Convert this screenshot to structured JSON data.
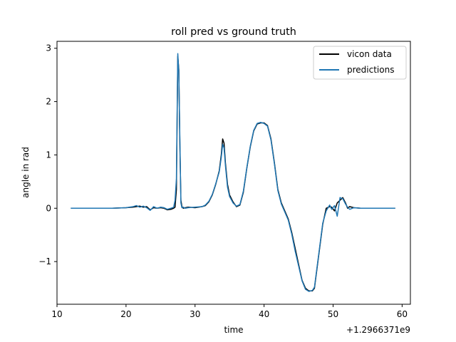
{
  "chart_data": {
    "type": "line",
    "title": "roll pred vs ground truth",
    "xlabel": "time",
    "ylabel": "angle in rad",
    "x_offset_label": "+1.2966371e9",
    "xlim": [
      10.0,
      61.2
    ],
    "ylim": [
      -1.8,
      3.13
    ],
    "x_ticks": [
      10,
      20,
      30,
      40,
      50,
      60
    ],
    "x_tick_labels": [
      "10",
      "20",
      "30",
      "40",
      "50",
      "60"
    ],
    "y_ticks": [
      -1,
      0,
      1,
      2,
      3
    ],
    "y_tick_labels": [
      "−1",
      "0",
      "1",
      "2",
      "3"
    ],
    "grid": false,
    "legend": {
      "position": "top-right",
      "entries": [
        "vicon data",
        "predictions"
      ]
    },
    "series": [
      {
        "name": "vicon data",
        "color": "#000000",
        "x": [
          12.0,
          14,
          16,
          18,
          20.0,
          21.0,
          21.5,
          22.0,
          22.5,
          23.0,
          23.5,
          24.0,
          24.5,
          25.0,
          25.5,
          26.0,
          26.5,
          26.9,
          27.1,
          27.3,
          27.5,
          27.65,
          27.8,
          27.95,
          28.1,
          28.3,
          28.6,
          29.0,
          30.0,
          31.0,
          31.5,
          32.0,
          32.5,
          33.0,
          33.5,
          33.8,
          34.0,
          34.2,
          34.4,
          34.7,
          35.0,
          35.5,
          36.0,
          36.5,
          37.0,
          37.5,
          38.0,
          38.5,
          39.0,
          39.5,
          40.0,
          40.5,
          41.0,
          41.5,
          42.0,
          42.5,
          43.0,
          43.5,
          44.0,
          44.5,
          45.0,
          45.5,
          46.0,
          46.5,
          47.0,
          47.3,
          47.6,
          48.0,
          48.5,
          49.0,
          49.5,
          49.8,
          50.2,
          50.6,
          51.0,
          51.4,
          51.8,
          52.1,
          52.4,
          53.0,
          54.0,
          55.0,
          56.0,
          57.0,
          58.0,
          59.0
        ],
        "y": [
          0.0,
          0.0,
          0.0,
          0.0,
          0.01,
          0.02,
          0.03,
          0.04,
          0.02,
          0.03,
          -0.03,
          0.01,
          0.0,
          0.01,
          0.0,
          -0.03,
          -0.02,
          0.0,
          0.02,
          0.35,
          2.85,
          2.6,
          1.2,
          0.15,
          0.03,
          0.0,
          0.01,
          0.02,
          0.01,
          0.03,
          0.05,
          0.12,
          0.25,
          0.45,
          0.7,
          1.0,
          1.3,
          1.22,
          0.85,
          0.45,
          0.25,
          0.12,
          0.03,
          0.06,
          0.3,
          0.75,
          1.15,
          1.45,
          1.58,
          1.6,
          1.6,
          1.55,
          1.3,
          0.85,
          0.35,
          0.1,
          -0.05,
          -0.2,
          -0.45,
          -0.75,
          -1.05,
          -1.35,
          -1.5,
          -1.55,
          -1.55,
          -1.5,
          -1.2,
          -0.8,
          -0.3,
          0.0,
          0.03,
          0.02,
          -0.05,
          0.1,
          0.15,
          0.2,
          0.1,
          0.0,
          0.03,
          0.01,
          0.0,
          0.0,
          0.0,
          0.0,
          0.0,
          0.0
        ]
      },
      {
        "name": "predictions",
        "color": "#1f77b4",
        "x": [
          12.0,
          14,
          16,
          18,
          20.0,
          21.0,
          21.5,
          22.0,
          22.5,
          23.0,
          23.5,
          24.0,
          24.5,
          25.0,
          25.5,
          26.0,
          26.5,
          26.9,
          27.1,
          27.3,
          27.5,
          27.65,
          27.8,
          27.95,
          28.1,
          28.3,
          28.6,
          29.0,
          30.0,
          31.0,
          31.5,
          32.0,
          32.5,
          33.0,
          33.5,
          33.8,
          34.0,
          34.2,
          34.4,
          34.7,
          35.0,
          35.5,
          36.0,
          36.5,
          37.0,
          37.5,
          38.0,
          38.5,
          39.0,
          39.5,
          40.0,
          40.5,
          41.0,
          41.5,
          42.0,
          42.5,
          43.0,
          43.5,
          44.0,
          44.5,
          45.0,
          45.5,
          46.0,
          46.5,
          47.0,
          47.3,
          47.6,
          48.0,
          48.5,
          49.0,
          49.5,
          49.8,
          50.2,
          50.6,
          51.0,
          51.4,
          51.8,
          52.1,
          52.4,
          53.0,
          54.0,
          55.0,
          56.0,
          57.0,
          58.0,
          59.0
        ],
        "y": [
          0.0,
          0.0,
          0.0,
          0.0,
          0.01,
          0.03,
          0.05,
          0.02,
          0.04,
          0.01,
          -0.04,
          0.03,
          0.0,
          0.02,
          0.01,
          -0.02,
          0.0,
          0.02,
          0.15,
          0.55,
          2.9,
          2.55,
          1.3,
          0.1,
          0.01,
          0.02,
          0.0,
          0.01,
          0.02,
          0.03,
          0.06,
          0.13,
          0.26,
          0.46,
          0.68,
          0.95,
          1.2,
          1.13,
          0.8,
          0.4,
          0.22,
          0.1,
          0.04,
          0.07,
          0.32,
          0.76,
          1.16,
          1.46,
          1.59,
          1.61,
          1.59,
          1.54,
          1.28,
          0.83,
          0.33,
          0.08,
          -0.07,
          -0.22,
          -0.48,
          -0.8,
          -1.08,
          -1.36,
          -1.52,
          -1.56,
          -1.54,
          -1.48,
          -1.18,
          -0.78,
          -0.28,
          -0.05,
          0.06,
          -0.02,
          0.05,
          -0.15,
          0.2,
          0.18,
          0.08,
          0.02,
          -0.02,
          0.01,
          0.0,
          0.0,
          0.0,
          0.0,
          0.0,
          0.0
        ]
      }
    ]
  }
}
